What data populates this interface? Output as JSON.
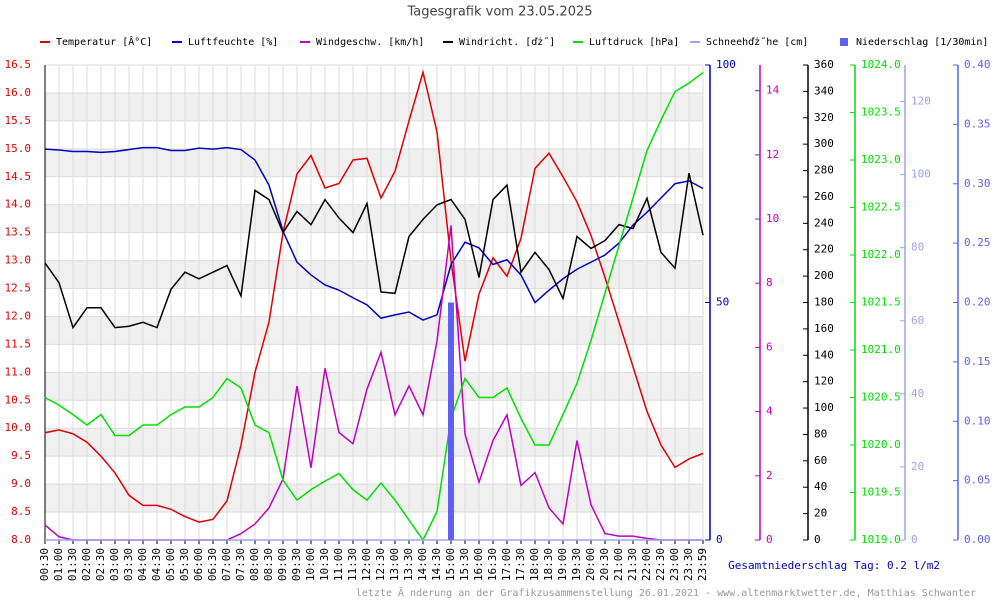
{
  "chart_data": {
    "type": "line",
    "title": "Tagesgrafik vom 23.05.2025",
    "categories": [
      "00:30",
      "01:00",
      "01:30",
      "02:00",
      "02:30",
      "03:00",
      "03:30",
      "04:00",
      "04:30",
      "05:00",
      "05:30",
      "06:00",
      "06:30",
      "07:00",
      "07:30",
      "08:00",
      "08:30",
      "09:00",
      "09:30",
      "10:00",
      "10:30",
      "11:00",
      "11:30",
      "12:00",
      "12:30",
      "13:00",
      "13:30",
      "14:00",
      "14:30",
      "15:00",
      "15:30",
      "16:00",
      "16:30",
      "17:00",
      "17:30",
      "18:00",
      "18:30",
      "19:00",
      "19:30",
      "20:00",
      "20:30",
      "21:00",
      "21:30",
      "22:00",
      "22:30",
      "23:00",
      "23:30",
      "23:59"
    ],
    "grid": true,
    "ylim": [
      8.0,
      16.5
    ],
    "yticks": [
      {
        "value": 8,
        "label": "8.0"
      },
      8.5,
      {
        "value": 9,
        "label": "9.0"
      },
      9.5,
      {
        "value": 10,
        "label": "10.0"
      },
      10.5,
      {
        "value": 11,
        "label": "11.0"
      },
      11.5,
      {
        "value": 12,
        "label": "12.0"
      },
      12.5,
      {
        "value": 13,
        "label": "13.0"
      },
      13.5,
      {
        "value": 14,
        "label": "14.0"
      },
      14.5,
      {
        "value": 15,
        "label": "15.0"
      },
      15.5,
      {
        "value": 16,
        "label": "16.0"
      },
      16.5
    ],
    "y2lim": [
      0,
      100
    ],
    "y2ticks": [
      0,
      50,
      100
    ],
    "y3lim": [
      0,
      14.8
    ],
    "y3ticks": [
      0,
      2,
      4,
      6,
      8,
      10,
      12,
      14
    ],
    "y4lim": [
      0,
      360
    ],
    "y4ticks": [
      0,
      20,
      40,
      60,
      80,
      100,
      120,
      140,
      160,
      180,
      200,
      220,
      240,
      260,
      280,
      300,
      320,
      340,
      360
    ],
    "y5lim": [
      1019.0,
      1024.0
    ],
    "y5ticks": [
      {
        "value": 1019,
        "label": "1019.0"
      },
      1019.5,
      {
        "value": 1020,
        "label": "1020.0"
      },
      1020.5,
      {
        "value": 1021,
        "label": "1021.0"
      },
      1021.5,
      {
        "value": 1022,
        "label": "1022.0"
      },
      1022.5,
      {
        "value": 1023,
        "label": "1023.0"
      },
      1023.5,
      {
        "value": 1024,
        "label": "1024.0"
      }
    ],
    "y6lim": [
      0,
      130
    ],
    "y6ticks": [
      0,
      20,
      40,
      60,
      80,
      100,
      120
    ],
    "y7lim": [
      0,
      0.4
    ],
    "y7ticks": [
      {
        "value": 0,
        "label": "0.00"
      },
      0.05,
      {
        "value": 0.1,
        "label": "0.10"
      },
      0.15,
      {
        "value": 0.2,
        "label": "0.20"
      },
      0.25,
      {
        "value": 0.3,
        "label": "0.30"
      },
      0.35,
      {
        "value": 0.4,
        "label": "0.40"
      }
    ],
    "series": [
      {
        "name": "Temperatur [Â°C]",
        "color": "#e00000",
        "axis": "y",
        "values": [
          9.92,
          9.97,
          9.9,
          9.75,
          9.5,
          9.2,
          8.8,
          8.62,
          8.62,
          8.55,
          8.42,
          8.32,
          8.37,
          8.7,
          9.7,
          11.0,
          11.9,
          13.5,
          14.55,
          14.88,
          14.3,
          14.38,
          14.8,
          14.83,
          14.12,
          14.6,
          15.5,
          16.37,
          15.3,
          13.0,
          11.2,
          12.4,
          13.05,
          12.72,
          13.4,
          14.65,
          14.92,
          14.5,
          14.05,
          13.45,
          12.7,
          11.9,
          11.1,
          10.3,
          9.7,
          9.3,
          9.45,
          9.55
        ]
      },
      {
        "name": "Luftfeuchte [%]",
        "color": "#0000c0",
        "axis": "y2",
        "values": [
          82.3,
          82.1,
          81.8,
          81.8,
          81.6,
          81.8,
          82.2,
          82.6,
          82.6,
          82,
          82,
          82.5,
          82.3,
          82.6,
          82.2,
          80,
          74.7,
          65,
          58.5,
          55.8,
          53.7,
          52.6,
          51,
          49.5,
          46.7,
          47.4,
          48,
          46.3,
          47.4,
          58,
          62.7,
          61.5,
          58,
          59,
          55.8,
          50,
          52.6,
          55,
          57,
          58.5,
          60,
          62.5,
          66.3,
          69,
          72,
          75,
          75.6,
          74
        ]
      },
      {
        "name": "Windgeschw. [km/h]",
        "color": "#c000c0",
        "axis": "y3",
        "values": [
          0.47,
          0.1,
          0,
          0,
          0,
          0,
          0,
          0,
          0,
          0,
          0,
          0,
          0,
          0,
          0.2,
          0.5,
          1.0,
          1.9,
          4.8,
          2.25,
          5.35,
          3.35,
          3.0,
          4.7,
          5.85,
          3.9,
          4.8,
          3.9,
          6.2,
          9.8,
          3.3,
          1.8,
          3.1,
          3.9,
          1.7,
          2.1,
          1.0,
          0.5,
          3.1,
          1.1,
          0.2,
          0.12,
          0.12,
          0.05,
          0,
          0,
          0,
          0
        ]
      },
      {
        "name": "Windricht. [ďż˝]",
        "color": "#000000",
        "axis": "y4",
        "values": [
          210,
          195,
          161,
          176,
          176,
          161,
          162,
          165,
          161,
          190,
          203,
          198,
          203,
          208,
          185,
          265,
          258,
          233,
          249,
          239,
          258,
          244,
          233,
          255,
          188,
          187,
          230,
          243,
          254,
          258,
          243,
          199,
          258,
          269,
          203,
          218,
          205,
          183,
          230,
          221,
          227,
          239,
          236,
          259,
          218,
          206,
          278,
          231
        ]
      },
      {
        "name": "Luftdruck [hPa]",
        "color": "#00e000",
        "axis": "y5",
        "values": [
          1020.5,
          1020.42,
          1020.32,
          1020.21,
          1020.32,
          1020.1,
          1020.1,
          1020.21,
          1020.21,
          1020.32,
          1020.4,
          1020.4,
          1020.5,
          1020.7,
          1020.6,
          1020.21,
          1020.13,
          1019.63,
          1019.42,
          1019.53,
          1019.62,
          1019.7,
          1019.53,
          1019.42,
          1019.6,
          1019.42,
          1019.21,
          1019.0,
          1019.3,
          1020.28,
          1020.7,
          1020.5,
          1020.5,
          1020.6,
          1020.28,
          1020.0,
          1020.0,
          1020.32,
          1020.65,
          1021.1,
          1021.6,
          1022.1,
          1022.6,
          1023.1,
          1023.42,
          1023.72,
          1023.81,
          1023.92
        ]
      },
      {
        "name": "Schneehďż˝he [cm]",
        "color": "#a0a0f0",
        "axis": "y6",
        "values": [
          0,
          0,
          0,
          0,
          0,
          0,
          0,
          0,
          0,
          0,
          0,
          0,
          0,
          0,
          0,
          0,
          0,
          0,
          0,
          0,
          0,
          0,
          0,
          0,
          0,
          0,
          0,
          0,
          0,
          0,
          0,
          0,
          0,
          0,
          0,
          0,
          0,
          0,
          0,
          0,
          0,
          0,
          0,
          0,
          0,
          0,
          0,
          0
        ]
      },
      {
        "name": "Niederschlag [1/30min]",
        "color": "#6060f0",
        "axis": "y7",
        "type": "bar",
        "values": [
          0,
          0,
          0,
          0,
          0,
          0,
          0,
          0,
          0,
          0,
          0,
          0,
          0,
          0,
          0,
          0,
          0,
          0,
          0,
          0,
          0,
          0,
          0,
          0,
          0,
          0,
          0,
          0,
          0,
          0.2,
          0,
          0,
          0,
          0,
          0,
          0,
          0,
          0,
          0,
          0,
          0,
          0,
          0,
          0,
          0,
          0,
          0,
          0
        ]
      }
    ],
    "annotations": [
      "Gesamtniederschlag Tag: 0.2 l/m2",
      "letzte Ă nderung an der Grafikzusammenstellung 26.01.2021 - www.altenmarktwetter.de, Matthias Schwanter"
    ]
  }
}
